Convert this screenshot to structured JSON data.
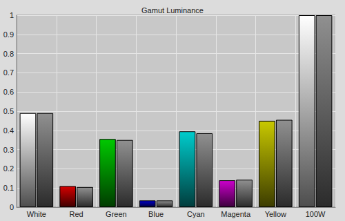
{
  "chart_data": {
    "type": "bar",
    "title": "Gamut Luminance",
    "categories": [
      "White",
      "Red",
      "Green",
      "Blue",
      "Cyan",
      "Magenta",
      "Yellow",
      "100W"
    ],
    "series": [
      {
        "colors": [
          "#ffffff",
          "#d40000",
          "#00c800",
          "#0000c8",
          "#00cccc",
          "#cc00cc",
          "#c8c800",
          "#ffffff"
        ],
        "values": [
          0.49,
          0.11,
          0.355,
          0.035,
          0.395,
          0.14,
          0.45,
          1.0
        ]
      },
      {
        "color": "#909090",
        "values": [
          0.49,
          0.105,
          0.35,
          0.035,
          0.385,
          0.143,
          0.455,
          1.0
        ]
      }
    ],
    "ylim": [
      0,
      1
    ],
    "yticks": [
      0,
      0.1,
      0.2,
      0.3,
      0.4,
      0.5,
      0.6,
      0.7,
      0.8,
      0.9,
      1
    ],
    "grid": true
  }
}
